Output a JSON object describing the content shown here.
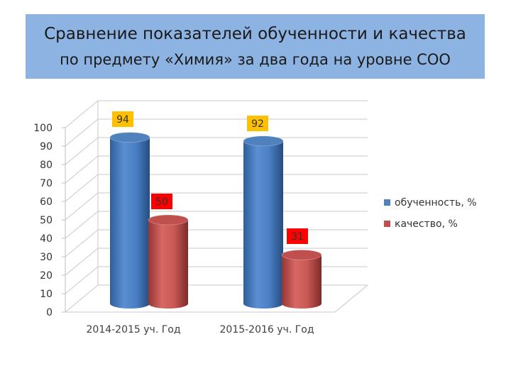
{
  "slide": {
    "title_line1": "Сравнение показателей обученности и качества",
    "title_line2": "по предмету «Химия» за два года на уровне СОО"
  },
  "chart_data": {
    "type": "bar",
    "title": "",
    "categories": [
      "2014-2015 уч. Год",
      "2015-2016 уч. Год"
    ],
    "series": [
      {
        "name": "обученность, %",
        "values": [
          94,
          92
        ],
        "color": "#4f81bd",
        "label_bg": "#ffc000"
      },
      {
        "name": "качество, %",
        "values": [
          50,
          31
        ],
        "color": "#c0504d",
        "label_bg": "#ff0000"
      }
    ],
    "ylim": [
      0,
      100
    ],
    "yticks": [
      0,
      10,
      20,
      30,
      40,
      50,
      60,
      70,
      80,
      90,
      100
    ],
    "grid": true,
    "legend_position": "right",
    "style": "3d-cylinder"
  }
}
